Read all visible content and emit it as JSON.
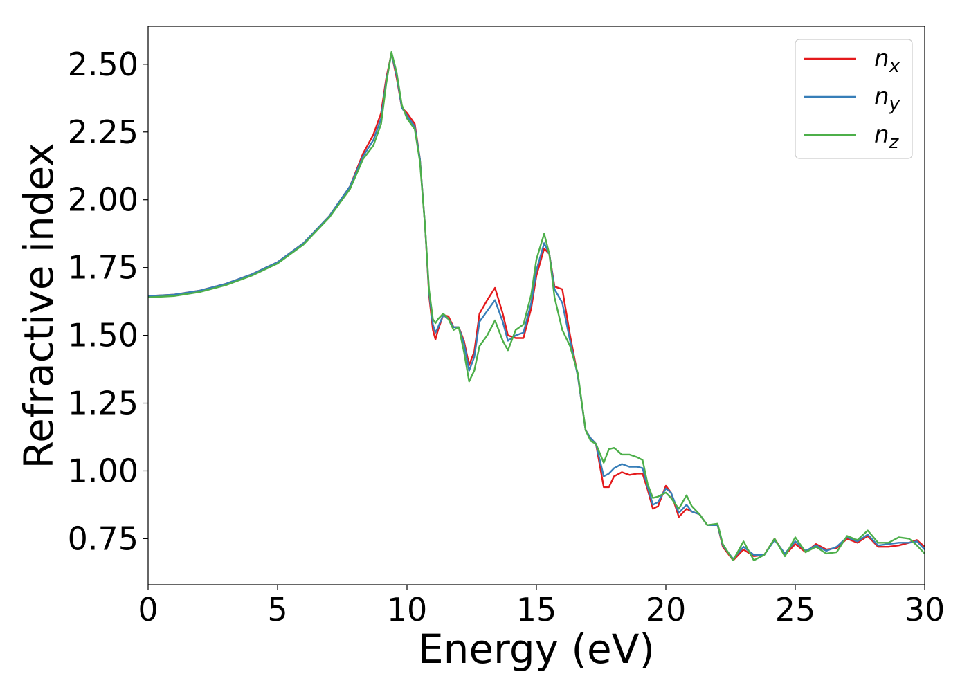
{
  "chart_data": {
    "type": "line",
    "title": "",
    "xlabel": "Energy (eV)",
    "ylabel": "Refractive index",
    "xlim": [
      0,
      30
    ],
    "ylim": [
      0.58,
      2.64
    ],
    "xticks": [
      0,
      5,
      10,
      15,
      20,
      25,
      30
    ],
    "xtick_labels": [
      "0",
      "5",
      "10",
      "15",
      "20",
      "25",
      "30"
    ],
    "yticks": [
      0.75,
      1.0,
      1.25,
      1.5,
      1.75,
      2.0,
      2.25,
      2.5
    ],
    "ytick_labels": [
      "0.75",
      "1.00",
      "1.25",
      "1.50",
      "1.75",
      "2.00",
      "2.25",
      "2.50"
    ],
    "grid": false,
    "legend_position": "top-right",
    "series": [
      {
        "name": "n",
        "subscript": "x",
        "color": "#e41a1c",
        "points": [
          [
            0,
            1.645
          ],
          [
            1,
            1.65
          ],
          [
            2,
            1.665
          ],
          [
            3,
            1.69
          ],
          [
            4,
            1.725
          ],
          [
            5,
            1.77
          ],
          [
            6,
            1.84
          ],
          [
            7,
            1.94
          ],
          [
            7.8,
            2.05
          ],
          [
            8.3,
            2.17
          ],
          [
            8.7,
            2.24
          ],
          [
            9.0,
            2.32
          ],
          [
            9.2,
            2.45
          ],
          [
            9.4,
            2.54
          ],
          [
            9.6,
            2.45
          ],
          [
            9.8,
            2.34
          ],
          [
            10.0,
            2.32
          ],
          [
            10.3,
            2.28
          ],
          [
            10.5,
            2.15
          ],
          [
            10.7,
            1.9
          ],
          [
            10.85,
            1.65
          ],
          [
            11.0,
            1.52
          ],
          [
            11.1,
            1.485
          ],
          [
            11.2,
            1.52
          ],
          [
            11.4,
            1.575
          ],
          [
            11.6,
            1.57
          ],
          [
            11.8,
            1.53
          ],
          [
            12.0,
            1.53
          ],
          [
            12.2,
            1.48
          ],
          [
            12.4,
            1.39
          ],
          [
            12.6,
            1.44
          ],
          [
            12.8,
            1.58
          ],
          [
            13.1,
            1.63
          ],
          [
            13.4,
            1.675
          ],
          [
            13.7,
            1.58
          ],
          [
            13.9,
            1.5
          ],
          [
            14.2,
            1.49
          ],
          [
            14.5,
            1.49
          ],
          [
            14.8,
            1.6
          ],
          [
            15.0,
            1.72
          ],
          [
            15.3,
            1.82
          ],
          [
            15.5,
            1.8
          ],
          [
            15.7,
            1.68
          ],
          [
            16.0,
            1.67
          ],
          [
            16.3,
            1.5
          ],
          [
            16.6,
            1.35
          ],
          [
            16.9,
            1.15
          ],
          [
            17.1,
            1.12
          ],
          [
            17.3,
            1.1
          ],
          [
            17.6,
            0.94
          ],
          [
            17.8,
            0.94
          ],
          [
            18.0,
            0.98
          ],
          [
            18.3,
            0.995
          ],
          [
            18.6,
            0.985
          ],
          [
            18.9,
            0.99
          ],
          [
            19.1,
            0.99
          ],
          [
            19.3,
            0.93
          ],
          [
            19.5,
            0.86
          ],
          [
            19.7,
            0.87
          ],
          [
            20.0,
            0.945
          ],
          [
            20.2,
            0.92
          ],
          [
            20.5,
            0.83
          ],
          [
            20.8,
            0.86
          ],
          [
            21.0,
            0.85
          ],
          [
            21.3,
            0.84
          ],
          [
            21.6,
            0.8
          ],
          [
            22.0,
            0.8
          ],
          [
            22.2,
            0.72
          ],
          [
            22.6,
            0.67
          ],
          [
            23.0,
            0.71
          ],
          [
            23.4,
            0.685
          ],
          [
            23.8,
            0.69
          ],
          [
            24.2,
            0.75
          ],
          [
            24.6,
            0.69
          ],
          [
            25.0,
            0.73
          ],
          [
            25.4,
            0.7
          ],
          [
            25.8,
            0.73
          ],
          [
            26.2,
            0.71
          ],
          [
            26.6,
            0.715
          ],
          [
            27.0,
            0.75
          ],
          [
            27.4,
            0.735
          ],
          [
            27.8,
            0.76
          ],
          [
            28.2,
            0.72
          ],
          [
            28.6,
            0.72
          ],
          [
            29.0,
            0.725
          ],
          [
            29.4,
            0.735
          ],
          [
            29.7,
            0.745
          ],
          [
            30.0,
            0.72
          ]
        ]
      },
      {
        "name": "n",
        "subscript": "y",
        "color": "#377eb8",
        "points": [
          [
            0,
            1.645
          ],
          [
            1,
            1.65
          ],
          [
            2,
            1.665
          ],
          [
            3,
            1.69
          ],
          [
            4,
            1.725
          ],
          [
            5,
            1.77
          ],
          [
            6,
            1.84
          ],
          [
            7,
            1.94
          ],
          [
            7.8,
            2.05
          ],
          [
            8.3,
            2.16
          ],
          [
            8.7,
            2.22
          ],
          [
            9.0,
            2.3
          ],
          [
            9.2,
            2.44
          ],
          [
            9.4,
            2.54
          ],
          [
            9.6,
            2.46
          ],
          [
            9.8,
            2.34
          ],
          [
            10.0,
            2.31
          ],
          [
            10.3,
            2.27
          ],
          [
            10.5,
            2.15
          ],
          [
            10.7,
            1.9
          ],
          [
            10.85,
            1.66
          ],
          [
            11.0,
            1.54
          ],
          [
            11.1,
            1.51
          ],
          [
            11.2,
            1.53
          ],
          [
            11.4,
            1.575
          ],
          [
            11.6,
            1.56
          ],
          [
            11.8,
            1.53
          ],
          [
            12.0,
            1.53
          ],
          [
            12.2,
            1.47
          ],
          [
            12.4,
            1.37
          ],
          [
            12.6,
            1.42
          ],
          [
            12.8,
            1.55
          ],
          [
            13.1,
            1.59
          ],
          [
            13.4,
            1.63
          ],
          [
            13.7,
            1.55
          ],
          [
            13.9,
            1.48
          ],
          [
            14.2,
            1.5
          ],
          [
            14.5,
            1.51
          ],
          [
            14.8,
            1.62
          ],
          [
            15.0,
            1.74
          ],
          [
            15.3,
            1.84
          ],
          [
            15.5,
            1.8
          ],
          [
            15.7,
            1.67
          ],
          [
            16.0,
            1.62
          ],
          [
            16.3,
            1.48
          ],
          [
            16.6,
            1.35
          ],
          [
            16.9,
            1.15
          ],
          [
            17.1,
            1.12
          ],
          [
            17.3,
            1.1
          ],
          [
            17.6,
            0.98
          ],
          [
            17.8,
            0.99
          ],
          [
            18.0,
            1.01
          ],
          [
            18.3,
            1.025
          ],
          [
            18.6,
            1.015
          ],
          [
            18.9,
            1.015
          ],
          [
            19.1,
            1.01
          ],
          [
            19.3,
            0.94
          ],
          [
            19.5,
            0.875
          ],
          [
            19.7,
            0.885
          ],
          [
            20.0,
            0.935
          ],
          [
            20.2,
            0.92
          ],
          [
            20.5,
            0.845
          ],
          [
            20.8,
            0.875
          ],
          [
            21.0,
            0.85
          ],
          [
            21.3,
            0.84
          ],
          [
            21.6,
            0.8
          ],
          [
            22.0,
            0.8
          ],
          [
            22.2,
            0.725
          ],
          [
            22.6,
            0.675
          ],
          [
            23.0,
            0.72
          ],
          [
            23.4,
            0.69
          ],
          [
            23.8,
            0.69
          ],
          [
            24.2,
            0.745
          ],
          [
            24.6,
            0.695
          ],
          [
            25.0,
            0.74
          ],
          [
            25.4,
            0.705
          ],
          [
            25.8,
            0.725
          ],
          [
            26.2,
            0.705
          ],
          [
            26.6,
            0.72
          ],
          [
            27.0,
            0.755
          ],
          [
            27.4,
            0.74
          ],
          [
            27.8,
            0.765
          ],
          [
            28.2,
            0.725
          ],
          [
            28.6,
            0.73
          ],
          [
            29.0,
            0.735
          ],
          [
            29.4,
            0.735
          ],
          [
            29.7,
            0.74
          ],
          [
            30.0,
            0.71
          ]
        ]
      },
      {
        "name": "n",
        "subscript": "z",
        "color": "#4daf4a",
        "points": [
          [
            0,
            1.64
          ],
          [
            1,
            1.645
          ],
          [
            2,
            1.66
          ],
          [
            3,
            1.685
          ],
          [
            4,
            1.72
          ],
          [
            5,
            1.765
          ],
          [
            6,
            1.835
          ],
          [
            7,
            1.935
          ],
          [
            7.8,
            2.04
          ],
          [
            8.3,
            2.15
          ],
          [
            8.7,
            2.2
          ],
          [
            9.0,
            2.28
          ],
          [
            9.2,
            2.43
          ],
          [
            9.4,
            2.545
          ],
          [
            9.6,
            2.47
          ],
          [
            9.8,
            2.35
          ],
          [
            10.0,
            2.3
          ],
          [
            10.3,
            2.26
          ],
          [
            10.5,
            2.14
          ],
          [
            10.7,
            1.9
          ],
          [
            10.85,
            1.67
          ],
          [
            11.0,
            1.56
          ],
          [
            11.1,
            1.545
          ],
          [
            11.2,
            1.56
          ],
          [
            11.4,
            1.58
          ],
          [
            11.6,
            1.56
          ],
          [
            11.8,
            1.52
          ],
          [
            12.0,
            1.53
          ],
          [
            12.2,
            1.44
          ],
          [
            12.4,
            1.33
          ],
          [
            12.6,
            1.37
          ],
          [
            12.8,
            1.46
          ],
          [
            13.1,
            1.5
          ],
          [
            13.4,
            1.555
          ],
          [
            13.7,
            1.48
          ],
          [
            13.9,
            1.445
          ],
          [
            14.2,
            1.52
          ],
          [
            14.5,
            1.54
          ],
          [
            14.8,
            1.65
          ],
          [
            15.0,
            1.78
          ],
          [
            15.3,
            1.875
          ],
          [
            15.5,
            1.8
          ],
          [
            15.7,
            1.64
          ],
          [
            16.0,
            1.52
          ],
          [
            16.3,
            1.46
          ],
          [
            16.6,
            1.36
          ],
          [
            16.9,
            1.15
          ],
          [
            17.1,
            1.11
          ],
          [
            17.3,
            1.1
          ],
          [
            17.6,
            1.03
          ],
          [
            17.8,
            1.08
          ],
          [
            18.0,
            1.085
          ],
          [
            18.3,
            1.06
          ],
          [
            18.6,
            1.06
          ],
          [
            18.9,
            1.05
          ],
          [
            19.1,
            1.04
          ],
          [
            19.3,
            0.95
          ],
          [
            19.5,
            0.9
          ],
          [
            19.7,
            0.905
          ],
          [
            20.0,
            0.92
          ],
          [
            20.2,
            0.9
          ],
          [
            20.5,
            0.86
          ],
          [
            20.8,
            0.91
          ],
          [
            21.0,
            0.87
          ],
          [
            21.3,
            0.84
          ],
          [
            21.6,
            0.8
          ],
          [
            22.0,
            0.805
          ],
          [
            22.2,
            0.73
          ],
          [
            22.6,
            0.67
          ],
          [
            23.0,
            0.74
          ],
          [
            23.4,
            0.67
          ],
          [
            23.8,
            0.69
          ],
          [
            24.2,
            0.75
          ],
          [
            24.6,
            0.685
          ],
          [
            25.0,
            0.755
          ],
          [
            25.4,
            0.7
          ],
          [
            25.8,
            0.72
          ],
          [
            26.2,
            0.695
          ],
          [
            26.6,
            0.7
          ],
          [
            27.0,
            0.76
          ],
          [
            27.4,
            0.745
          ],
          [
            27.8,
            0.78
          ],
          [
            28.2,
            0.735
          ],
          [
            28.6,
            0.735
          ],
          [
            29.0,
            0.755
          ],
          [
            29.4,
            0.75
          ],
          [
            29.7,
            0.725
          ],
          [
            30.0,
            0.695
          ]
        ]
      }
    ]
  }
}
